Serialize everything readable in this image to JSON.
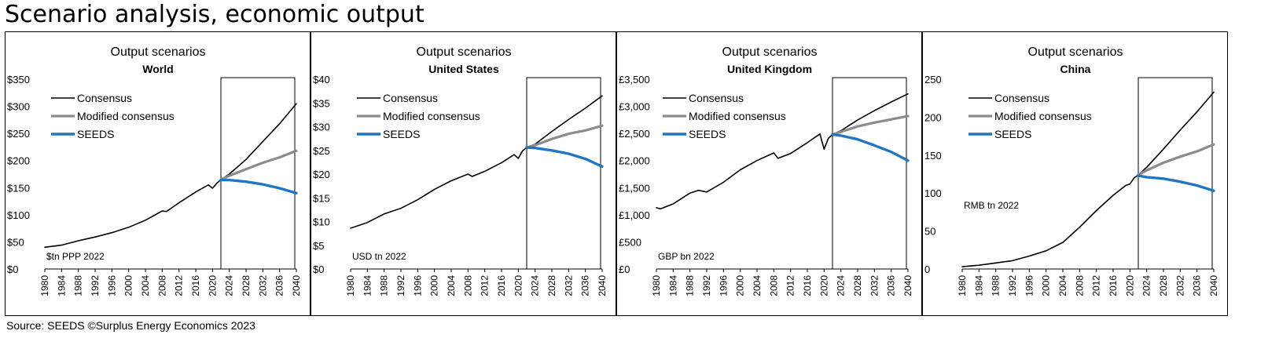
{
  "page": {
    "title": "Scenario analysis, economic output",
    "source": "Source: SEEDS  ©Surplus Energy Economics 2023"
  },
  "colors": {
    "consensus": "#000000",
    "modified": "#8c8c8c",
    "seeds": "#1f77c4"
  },
  "chart_data": [
    {
      "type": "line",
      "title": "Output scenarios",
      "subtitle": "World",
      "unit_label": "$tn PPP 2022",
      "legend_position": "top-left",
      "ylim": [
        0,
        350
      ],
      "yticks": [
        0,
        50,
        100,
        150,
        200,
        250,
        300,
        350
      ],
      "ytick_labels": [
        "$0",
        "$50",
        "$100",
        "$150",
        "$200",
        "$250",
        "$300",
        "$350"
      ],
      "xticks": [
        "1980",
        "1984",
        "1988",
        "1992",
        "1996",
        "2000",
        "2004",
        "2008",
        "2012",
        "2016",
        "2020",
        "2024",
        "2028",
        "2032",
        "2036",
        "2040"
      ],
      "projection_start": 2022,
      "series": [
        {
          "name": "Consensus",
          "x": [
            1980,
            1984,
            1988,
            1992,
            1996,
            2000,
            2004,
            2008,
            2009,
            2012,
            2016,
            2019,
            2020,
            2021,
            2022,
            2024,
            2028,
            2032,
            2036,
            2040
          ],
          "values": [
            40,
            44,
            52,
            59,
            67,
            77,
            90,
            107,
            106,
            122,
            142,
            155,
            149,
            158,
            165,
            175,
            202,
            235,
            268,
            305
          ]
        },
        {
          "name": "Modified consensus",
          "x": [
            2022,
            2024,
            2028,
            2032,
            2036,
            2040
          ],
          "values": [
            165,
            172,
            184,
            196,
            206,
            218
          ]
        },
        {
          "name": "SEEDS",
          "x": [
            2022,
            2024,
            2028,
            2032,
            2036,
            2040
          ],
          "values": [
            164,
            164,
            161,
            156,
            149,
            140
          ]
        }
      ]
    },
    {
      "type": "line",
      "title": "Output scenarios",
      "subtitle": "United States",
      "unit_label": "USD tn 2022",
      "legend_position": "top-left",
      "ylim": [
        0,
        40
      ],
      "yticks": [
        0,
        5,
        10,
        15,
        20,
        25,
        30,
        35,
        40
      ],
      "ytick_labels": [
        "$0",
        "$5",
        "$10",
        "$15",
        "$20",
        "$25",
        "$30",
        "$35",
        "$40"
      ],
      "xticks": [
        "1980",
        "1984",
        "1988",
        "1992",
        "1996",
        "2000",
        "2004",
        "2008",
        "2012",
        "2016",
        "2020",
        "2024",
        "2028",
        "2032",
        "2036",
        "2040"
      ],
      "projection_start": 2022,
      "series": [
        {
          "name": "Consensus",
          "x": [
            1980,
            1984,
            1988,
            1992,
            1996,
            2000,
            2004,
            2008,
            2009,
            2012,
            2016,
            2019,
            2020,
            2021,
            2022,
            2024,
            2028,
            2032,
            2036,
            2040
          ],
          "values": [
            8.6,
            9.8,
            11.6,
            12.8,
            14.6,
            16.8,
            18.6,
            20.0,
            19.5,
            20.6,
            22.4,
            24.1,
            23.3,
            24.9,
            25.6,
            26.3,
            29.0,
            31.5,
            33.9,
            36.5
          ]
        },
        {
          "name": "Modified consensus",
          "x": [
            2022,
            2024,
            2028,
            2032,
            2036,
            2040
          ],
          "values": [
            25.6,
            26.1,
            27.4,
            28.5,
            29.2,
            30.2
          ]
        },
        {
          "name": "SEEDS",
          "x": [
            2022,
            2024,
            2028,
            2032,
            2036,
            2040
          ],
          "values": [
            25.6,
            25.5,
            25.0,
            24.3,
            23.2,
            21.6
          ]
        }
      ]
    },
    {
      "type": "line",
      "title": "Output scenarios",
      "subtitle": "United Kingdom",
      "unit_label": "GBP bn 2022",
      "legend_position": "top-left",
      "ylim": [
        0,
        3500
      ],
      "yticks": [
        0,
        500,
        1000,
        1500,
        2000,
        2500,
        3000,
        3500
      ],
      "ytick_labels": [
        "£0",
        "£500",
        "£1,000",
        "£1,500",
        "£2,000",
        "£2,500",
        "£3,000",
        "£3,500"
      ],
      "xticks": [
        "1980",
        "1984",
        "1988",
        "1992",
        "1996",
        "2000",
        "2004",
        "2008",
        "2012",
        "2016",
        "2020",
        "2024",
        "2028",
        "2032",
        "2036",
        "2040"
      ],
      "projection_start": 2022,
      "series": [
        {
          "name": "Consensus",
          "x": [
            1980,
            1981,
            1984,
            1988,
            1990,
            1992,
            1996,
            2000,
            2004,
            2008,
            2009,
            2012,
            2016,
            2019,
            2020,
            2021,
            2022,
            2024,
            2028,
            2032,
            2036,
            2040
          ],
          "values": [
            1130,
            1110,
            1200,
            1400,
            1450,
            1420,
            1600,
            1830,
            2000,
            2140,
            2040,
            2130,
            2330,
            2490,
            2210,
            2410,
            2480,
            2550,
            2750,
            2920,
            3080,
            3230
          ]
        },
        {
          "name": "Modified consensus",
          "x": [
            2022,
            2024,
            2028,
            2032,
            2036,
            2040
          ],
          "values": [
            2480,
            2530,
            2630,
            2700,
            2760,
            2820
          ]
        },
        {
          "name": "SEEDS",
          "x": [
            2022,
            2024,
            2028,
            2032,
            2036,
            2040
          ],
          "values": [
            2480,
            2460,
            2390,
            2280,
            2160,
            2000
          ]
        }
      ]
    },
    {
      "type": "line",
      "title": "Output scenarios",
      "subtitle": "China",
      "unit_label": "RMB tn 2022",
      "legend_position": "top-left",
      "ylim": [
        0,
        250
      ],
      "yticks": [
        0,
        50,
        100,
        150,
        200,
        250
      ],
      "ytick_labels": [
        "0",
        "50",
        "100",
        "150",
        "200",
        "250"
      ],
      "xticks": [
        "1980",
        "1984",
        "1988",
        "1992",
        "1996",
        "2000",
        "2004",
        "2008",
        "2012",
        "2016",
        "2020",
        "2024",
        "2028",
        "2032",
        "2036",
        "2040"
      ],
      "projection_start": 2022,
      "series": [
        {
          "name": "Consensus",
          "x": [
            1980,
            1984,
            1988,
            1992,
            1996,
            2000,
            2004,
            2008,
            2012,
            2016,
            2019,
            2020,
            2021,
            2022,
            2024,
            2028,
            2032,
            2036,
            2040
          ],
          "values": [
            3,
            5,
            8,
            11,
            17,
            24,
            35,
            55,
            77,
            97,
            110,
            112,
            120,
            124,
            134,
            158,
            183,
            207,
            233
          ]
        },
        {
          "name": "Modified consensus",
          "x": [
            2022,
            2024,
            2028,
            2032,
            2036,
            2040
          ],
          "values": [
            124,
            130,
            140,
            148,
            155,
            164
          ]
        },
        {
          "name": "SEEDS",
          "x": [
            2022,
            2024,
            2028,
            2032,
            2036,
            2040
          ],
          "values": [
            123,
            121,
            119,
            115,
            110,
            103
          ]
        }
      ]
    }
  ]
}
